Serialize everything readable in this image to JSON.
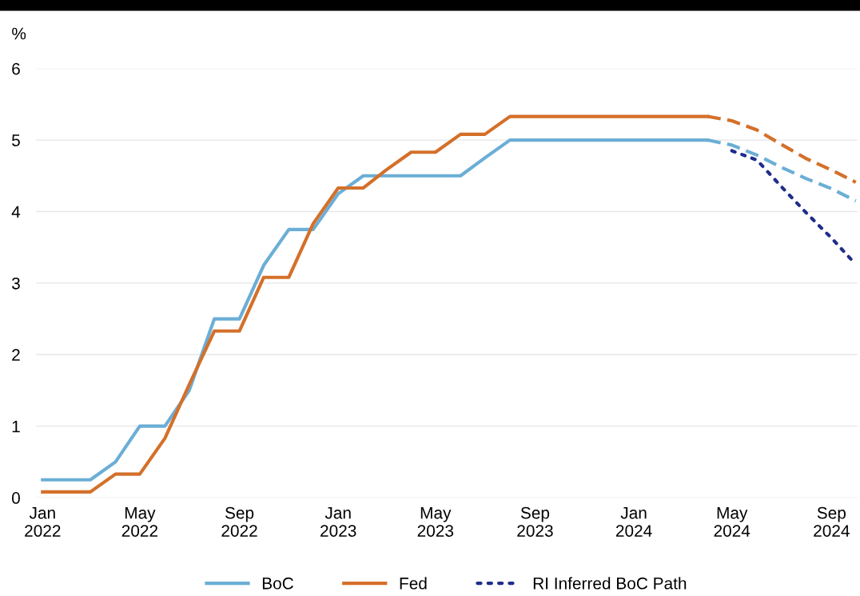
{
  "chart_data": {
    "type": "line",
    "ylabel": "%",
    "ylim": [
      0,
      6
    ],
    "yticks": [
      0,
      1,
      2,
      3,
      4,
      5,
      6
    ],
    "xlim": [
      "2021-12-24",
      "2024-10-03"
    ],
    "xticks": [
      {
        "value": "2022-01-01",
        "label": "Jan\n2022"
      },
      {
        "value": "2022-05-01",
        "label": "May\n2022"
      },
      {
        "value": "2022-09-01",
        "label": "Sep\n2022"
      },
      {
        "value": "2023-01-01",
        "label": "Jan\n2023"
      },
      {
        "value": "2023-05-01",
        "label": "May\n2023"
      },
      {
        "value": "2023-09-01",
        "label": "Sep\n2023"
      },
      {
        "value": "2024-01-01",
        "label": "Jan\n2024"
      },
      {
        "value": "2024-05-01",
        "label": "May\n2024"
      },
      {
        "value": "2024-09-01",
        "label": "Sep\n2024"
      }
    ],
    "grid": "y",
    "legend": "bottom",
    "series": [
      {
        "name": "BoC",
        "color": "#6baed6",
        "line_style": "solid",
        "x": [
          "2022-01",
          "2022-02",
          "2022-03",
          "2022-04",
          "2022-05",
          "2022-06",
          "2022-07",
          "2022-08",
          "2022-09",
          "2022-10",
          "2022-11",
          "2022-12",
          "2023-01",
          "2023-02",
          "2023-03",
          "2023-04",
          "2023-05",
          "2023-06",
          "2023-07",
          "2023-08",
          "2023-09",
          "2023-10",
          "2023-11",
          "2023-12",
          "2024-01",
          "2024-02",
          "2024-03",
          "2024-04"
        ],
        "values": [
          0.25,
          0.25,
          0.25,
          0.5,
          1.0,
          1.0,
          1.5,
          2.5,
          2.5,
          3.25,
          3.75,
          3.75,
          4.25,
          4.5,
          4.5,
          4.5,
          4.5,
          4.5,
          4.75,
          5.0,
          5.0,
          5.0,
          5.0,
          5.0,
          5.0,
          5.0,
          5.0,
          5.0
        ]
      },
      {
        "name": "Fed",
        "color": "#d4702a",
        "line_style": "solid",
        "x": [
          "2022-01",
          "2022-02",
          "2022-03",
          "2022-04",
          "2022-05",
          "2022-06",
          "2022-07",
          "2022-08",
          "2022-09",
          "2022-10",
          "2022-11",
          "2022-12",
          "2023-01",
          "2023-02",
          "2023-03",
          "2023-04",
          "2023-05",
          "2023-06",
          "2023-07",
          "2023-08",
          "2023-09",
          "2023-10",
          "2023-11",
          "2023-12",
          "2024-01",
          "2024-02",
          "2024-03",
          "2024-04"
        ],
        "values": [
          0.08,
          0.08,
          0.08,
          0.33,
          0.33,
          0.83,
          1.58,
          2.33,
          2.33,
          3.08,
          3.08,
          3.83,
          4.33,
          4.33,
          4.58,
          4.83,
          4.83,
          5.08,
          5.08,
          5.33,
          5.33,
          5.33,
          5.33,
          5.33,
          5.33,
          5.33,
          5.33,
          5.33
        ]
      },
      {
        "name": "RI Inferred BoC Path",
        "color": "#1f2d8a",
        "line_style": "dotted",
        "x": [
          "2024-05",
          "2024-06",
          "2024-07",
          "2024-08",
          "2024-09",
          "2024-10"
        ],
        "values": [
          4.85,
          4.72,
          4.35,
          3.98,
          3.63,
          3.26
        ]
      },
      {
        "color": "#6baed6",
        "line_style": "dashed",
        "x": [
          "2024-04",
          "2024-05",
          "2024-06",
          "2024-07",
          "2024-08",
          "2024-09",
          "2024-10"
        ],
        "values": [
          5.0,
          4.93,
          4.79,
          4.62,
          4.46,
          4.32,
          4.15
        ]
      },
      {
        "color": "#d4702a",
        "line_style": "dashed",
        "x": [
          "2024-04",
          "2024-05",
          "2024-06",
          "2024-07",
          "2024-08",
          "2024-09",
          "2024-10"
        ],
        "values": [
          5.33,
          5.27,
          5.14,
          4.94,
          4.74,
          4.58,
          4.41
        ]
      }
    ]
  }
}
